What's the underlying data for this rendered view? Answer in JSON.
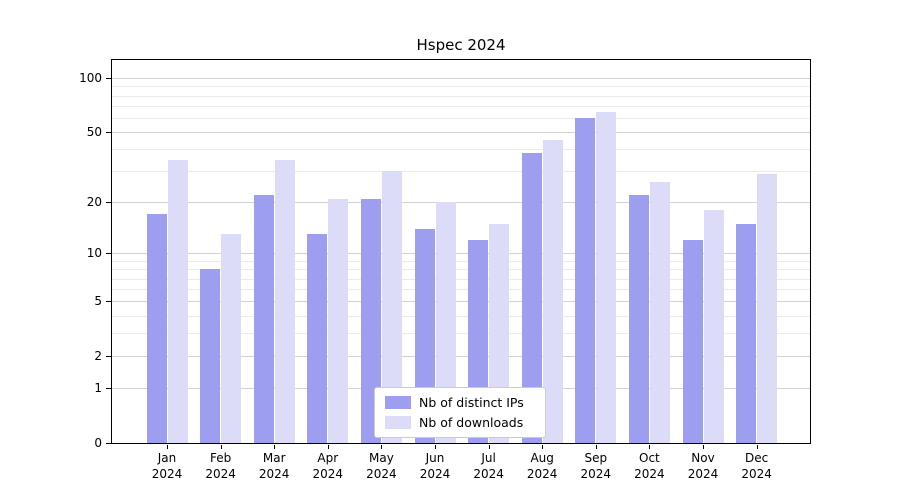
{
  "chart_data": {
    "type": "bar",
    "title": "Hspec 2024",
    "scale": "log1p",
    "grid": true,
    "legend_position": "bottom-center",
    "categories": [
      "Jan",
      "Feb",
      "Mar",
      "Apr",
      "May",
      "Jun",
      "Jul",
      "Aug",
      "Sep",
      "Oct",
      "Nov",
      "Dec"
    ],
    "year_label": "2024",
    "series": [
      {
        "name": "Nb of distinct IPs",
        "color": "#9e9ef0",
        "values": [
          17,
          8,
          22,
          13,
          21,
          14,
          12,
          38,
          60,
          22,
          12,
          15
        ]
      },
      {
        "name": "Nb of downloads",
        "color": "#dcdcf8",
        "values": [
          35,
          13,
          35,
          21,
          30,
          20,
          15,
          45,
          65,
          26,
          18,
          29
        ]
      }
    ],
    "yticks": [
      0,
      1,
      2,
      5,
      10,
      20,
      50,
      100
    ],
    "minor_gridlines": [
      3,
      4,
      6,
      7,
      8,
      9,
      30,
      40,
      60,
      70,
      80,
      90
    ],
    "ylim": [
      0,
      115
    ],
    "colors": {
      "axis": "#000000",
      "major_grid": "#d3d3d3",
      "minor_grid": "#ebebeb",
      "background": "#ffffff"
    }
  }
}
